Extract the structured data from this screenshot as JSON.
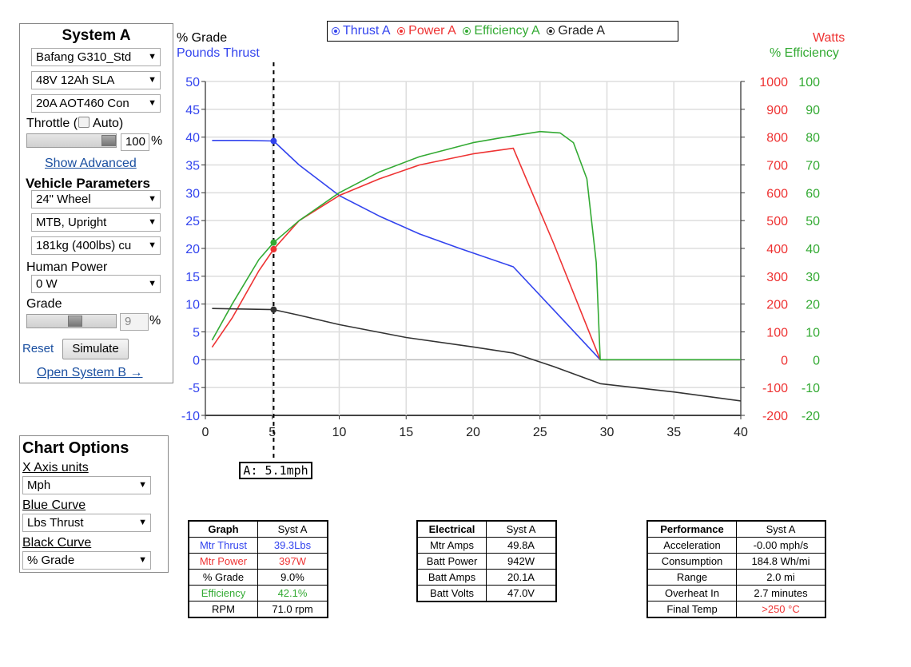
{
  "system_a": {
    "title": "System A",
    "motor": "Bafang G310_Std",
    "battery": "48V 12Ah SLA",
    "controller": "20A AOT460 Con",
    "throttle_label": "Throttle (",
    "auto_label": "Auto)",
    "throttle_value": "100",
    "percent": "%",
    "throttle_level": 1.0,
    "show_advanced": "Show Advanced",
    "vehicle_params": "Vehicle Parameters",
    "wheel": "24\"  Wheel",
    "frame": "MTB, Upright",
    "weight": "181kg (400lbs) cu",
    "human_power_label": "Human Power",
    "human_power": "0 W",
    "grade_label": "Grade",
    "grade_value": "9",
    "grade_level": 0.55,
    "reset": "Reset",
    "simulate": "Simulate",
    "open_b": "Open System B →"
  },
  "chart_options": {
    "title": "Chart Options",
    "x_units_label": "X Axis units",
    "x_units": "Mph",
    "blue_label": "Blue Curve",
    "blue": "Lbs Thrust",
    "black_label": "Black Curve",
    "black": "% Grade"
  },
  "legend": {
    "thrust": "Thrust A",
    "power": "Power A",
    "efficiency": "Efficiency A",
    "grade": "Grade A"
  },
  "colors": {
    "thrust": "#3344ee",
    "power": "#ee3333",
    "efficiency": "#33aa33",
    "grade": "#333333",
    "link": "#1a4fa0"
  },
  "chart_data": {
    "type": "line",
    "left_axis_label_1": "% Grade",
    "left_axis_label_2": "Pounds Thrust",
    "right_axis_label_1": "Watts",
    "right_axis_label_2": "% Efficiency",
    "xlim": [
      0,
      40
    ],
    "x_ticks": [
      "0",
      "5",
      "10",
      "15",
      "20",
      "25",
      "30",
      "35",
      "40"
    ],
    "left_ylim": [
      -10,
      50
    ],
    "left_ticks": [
      "50",
      "45",
      "40",
      "35",
      "30",
      "25",
      "20",
      "15",
      "10",
      "5",
      "0",
      "-5",
      "-10"
    ],
    "watts_ticks": [
      "1000",
      "900",
      "800",
      "700",
      "600",
      "500",
      "400",
      "300",
      "200",
      "100",
      "0",
      "-100",
      "-200"
    ],
    "eff_ticks": [
      "100",
      "90",
      "80",
      "70",
      "60",
      "50",
      "40",
      "30",
      "20",
      "10",
      "0",
      "-10",
      "-20"
    ],
    "grid": true,
    "cursor_x": 5.1,
    "cursor_label": "A: 5.1mph",
    "series": [
      {
        "name": "Thrust A",
        "axis": "left",
        "points": [
          [
            0.5,
            39.4
          ],
          [
            3,
            39.4
          ],
          [
            5.1,
            39.3
          ],
          [
            7,
            35
          ],
          [
            10,
            29.5
          ],
          [
            13,
            25.8
          ],
          [
            16,
            22.6
          ],
          [
            19,
            20
          ],
          [
            23,
            16.7
          ],
          [
            26,
            9
          ],
          [
            29.5,
            0
          ],
          [
            40,
            0
          ]
        ]
      },
      {
        "name": "Power A",
        "axis": "watts",
        "points": [
          [
            0.5,
            45
          ],
          [
            2,
            150
          ],
          [
            4,
            320
          ],
          [
            5.1,
            397
          ],
          [
            7,
            500
          ],
          [
            10,
            590
          ],
          [
            13,
            650
          ],
          [
            16,
            700
          ],
          [
            20,
            740
          ],
          [
            23,
            760
          ],
          [
            26,
            420
          ],
          [
            29.5,
            0
          ],
          [
            40,
            0
          ]
        ]
      },
      {
        "name": "Efficiency A",
        "axis": "eff",
        "points": [
          [
            0.5,
            7
          ],
          [
            2,
            20
          ],
          [
            4,
            36
          ],
          [
            5.1,
            42.1
          ],
          [
            7,
            50
          ],
          [
            10,
            60
          ],
          [
            13,
            67.5
          ],
          [
            16,
            73
          ],
          [
            20,
            78
          ],
          [
            23,
            80.5
          ],
          [
            25,
            82
          ],
          [
            26.5,
            81.5
          ],
          [
            27.5,
            78
          ],
          [
            28.5,
            65
          ],
          [
            29.2,
            35
          ],
          [
            29.5,
            0
          ],
          [
            40,
            0
          ]
        ]
      },
      {
        "name": "Grade A",
        "axis": "left",
        "points": [
          [
            0.5,
            9.2
          ],
          [
            5.1,
            9.0
          ],
          [
            7,
            8
          ],
          [
            10,
            6.3
          ],
          [
            15,
            4
          ],
          [
            20,
            2.3
          ],
          [
            23,
            1.2
          ],
          [
            26,
            -1.2
          ],
          [
            29.5,
            -4.3
          ],
          [
            35,
            -5.8
          ],
          [
            40,
            -7.4
          ]
        ]
      }
    ],
    "markers": [
      {
        "series": "Thrust A",
        "axis": "left",
        "x": 5.1,
        "y": 39.3
      },
      {
        "series": "Power A",
        "axis": "watts",
        "x": 5.1,
        "y": 397
      },
      {
        "series": "Efficiency A",
        "axis": "eff",
        "x": 5.1,
        "y": 42.1
      },
      {
        "series": "Grade A",
        "axis": "left",
        "x": 5.1,
        "y": 9.0
      }
    ]
  },
  "graph_table": {
    "headers": [
      "Graph",
      "Syst A"
    ],
    "rows": [
      [
        "Mtr Thrust",
        "39.3Lbs"
      ],
      [
        "Mtr Power",
        "397W"
      ],
      [
        "% Grade",
        "9.0%"
      ],
      [
        "Efficiency",
        "42.1%"
      ],
      [
        "RPM",
        "71.0 rpm"
      ]
    ]
  },
  "electrical_table": {
    "headers": [
      "Electrical",
      "Syst A"
    ],
    "rows": [
      [
        "Mtr Amps",
        "49.8A"
      ],
      [
        "Batt Power",
        "942W"
      ],
      [
        "Batt Amps",
        "20.1A"
      ],
      [
        "Batt Volts",
        "47.0V"
      ]
    ]
  },
  "performance_table": {
    "headers": [
      "Performance",
      "Syst A"
    ],
    "rows": [
      [
        "Acceleration",
        "-0.00 mph/s"
      ],
      [
        "Consumption",
        "184.8 Wh/mi"
      ],
      [
        "Range",
        "2.0 mi"
      ],
      [
        "Overheat In",
        "2.7 minutes"
      ],
      [
        "Final Temp",
        ">250 °C"
      ]
    ]
  }
}
